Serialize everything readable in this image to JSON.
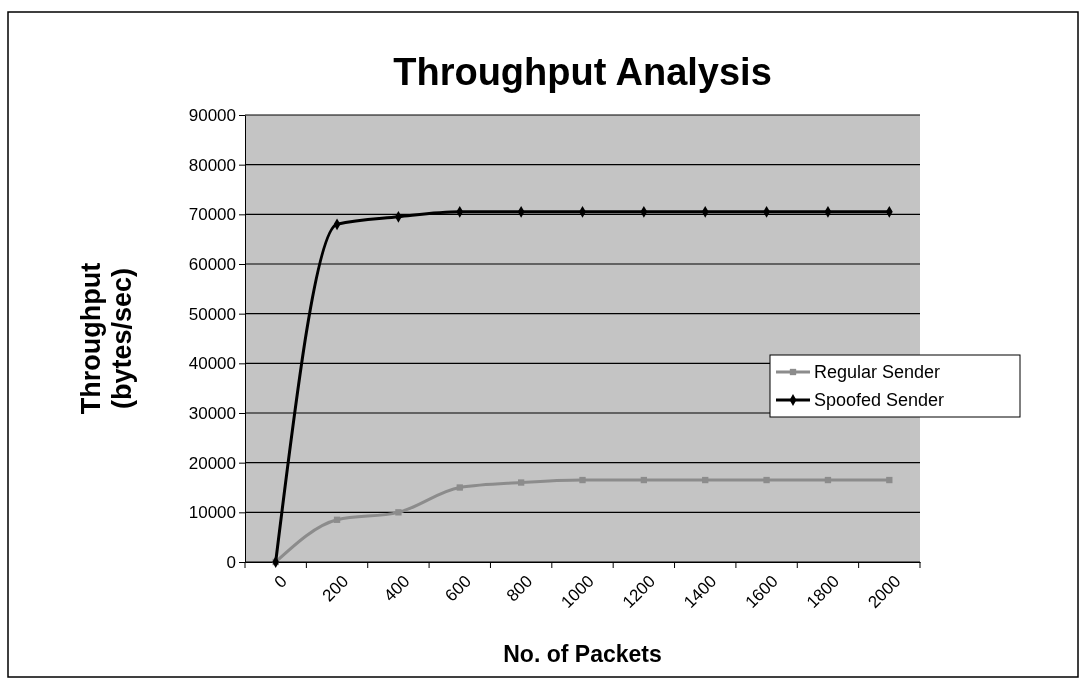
{
  "chart_data": {
    "type": "line",
    "title": "Throughput Analysis",
    "xlabel": "No. of Packets",
    "ylabel": "Throughput (bytes/sec)",
    "categories": [
      "0",
      "200",
      "400",
      "600",
      "800",
      "1000",
      "1200",
      "1400",
      "1600",
      "1800",
      "2000"
    ],
    "series": [
      {
        "name": "Regular Sender",
        "color": "#8c8c8c",
        "marker": "square",
        "values": [
          0,
          8500,
          10000,
          15000,
          16000,
          16500,
          16500,
          16500,
          16500,
          16500,
          16500
        ]
      },
      {
        "name": "Spoofed Sender",
        "color": "#000000",
        "marker": "diamond",
        "values": [
          0,
          68000,
          69500,
          70500,
          70500,
          70500,
          70500,
          70500,
          70500,
          70500,
          70500
        ]
      }
    ],
    "ylim": [
      0,
      90000
    ],
    "yticks": [
      0,
      10000,
      20000,
      30000,
      40000,
      50000,
      60000,
      70000,
      80000,
      90000
    ],
    "grid": "y",
    "legend": "right"
  }
}
